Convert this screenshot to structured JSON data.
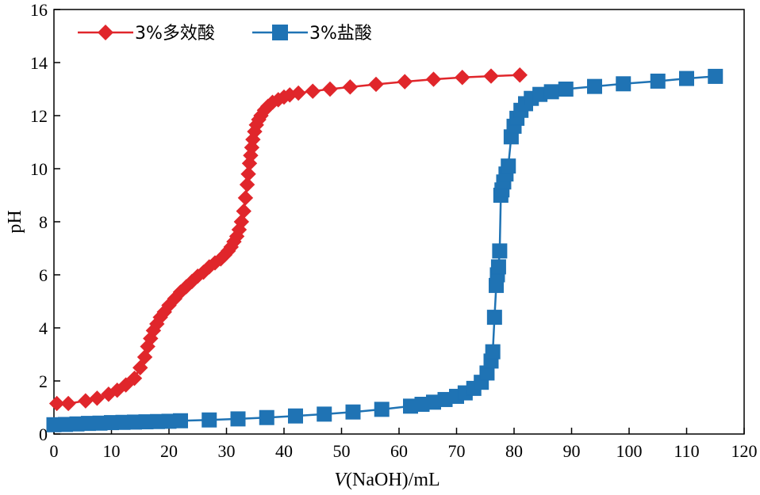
{
  "chart_data": {
    "type": "line",
    "title": "",
    "xlabel_italic": "V",
    "xlabel_rest": "(NaOH)/mL",
    "ylabel": "pH",
    "xlim": [
      0,
      120
    ],
    "ylim": [
      0,
      16
    ],
    "xticks": [
      0,
      10,
      20,
      30,
      40,
      50,
      60,
      70,
      80,
      90,
      100,
      110,
      120
    ],
    "yticks": [
      0,
      2,
      4,
      6,
      8,
      10,
      12,
      14,
      16
    ],
    "grid": false,
    "legend_position": "top-left",
    "series": [
      {
        "name": "3%多效酸",
        "color": "#e0262b",
        "marker": "diamond",
        "x": [
          0.5,
          2.5,
          5.5,
          7.5,
          9.5,
          11,
          12.5,
          14,
          15,
          15.8,
          16.3,
          16.8,
          17.3,
          17.9,
          18.5,
          19.2,
          20,
          21,
          22,
          23,
          24,
          25,
          26,
          27,
          28,
          29,
          29.7,
          30.3,
          30.8,
          31.3,
          31.8,
          32.2,
          32.6,
          33,
          33.3,
          33.6,
          33.8,
          34,
          34.2,
          34.4,
          34.6,
          34.9,
          35.2,
          35.6,
          36,
          36.6,
          37.2,
          38,
          39,
          40,
          41,
          42.5,
          45,
          48,
          51.5,
          56,
          61,
          66,
          71,
          76,
          81
        ],
        "y": [
          1.15,
          1.15,
          1.25,
          1.35,
          1.5,
          1.65,
          1.85,
          2.1,
          2.5,
          2.9,
          3.3,
          3.6,
          3.9,
          4.15,
          4.4,
          4.6,
          4.85,
          5.1,
          5.35,
          5.55,
          5.75,
          5.95,
          6.1,
          6.3,
          6.45,
          6.6,
          6.75,
          6.9,
          7.05,
          7.25,
          7.45,
          7.7,
          8.0,
          8.4,
          8.9,
          9.4,
          9.8,
          10.2,
          10.5,
          10.8,
          11.1,
          11.4,
          11.65,
          11.85,
          12.0,
          12.2,
          12.35,
          12.5,
          12.6,
          12.7,
          12.78,
          12.85,
          12.92,
          13.0,
          13.08,
          13.18,
          13.28,
          13.37,
          13.44,
          13.49,
          13.53
        ]
      },
      {
        "name": "3%盐酸",
        "color": "#1f73b4",
        "marker": "square",
        "x": [
          0,
          2,
          4,
          6,
          8,
          10,
          12,
          14,
          16,
          18,
          20,
          22,
          27,
          32,
          37,
          42,
          47,
          52,
          57,
          62,
          64,
          66,
          68,
          70,
          71.5,
          73,
          74.3,
          75.3,
          76,
          76.3,
          76.6,
          76.9,
          77.1,
          77.3,
          77.5,
          77.7,
          77.9,
          78.2,
          78.6,
          79,
          79.5,
          80,
          80.5,
          81.2,
          82,
          83,
          84.5,
          86.5,
          89,
          94,
          99,
          105,
          110,
          115
        ],
        "y": [
          0.35,
          0.36,
          0.38,
          0.4,
          0.41,
          0.43,
          0.44,
          0.45,
          0.46,
          0.47,
          0.48,
          0.5,
          0.53,
          0.57,
          0.62,
          0.68,
          0.75,
          0.83,
          0.93,
          1.05,
          1.12,
          1.2,
          1.3,
          1.42,
          1.55,
          1.72,
          1.95,
          2.3,
          2.75,
          3.1,
          4.4,
          5.6,
          6.0,
          6.3,
          6.9,
          9.0,
          9.2,
          9.5,
          9.8,
          10.1,
          11.2,
          11.6,
          11.9,
          12.2,
          12.45,
          12.65,
          12.8,
          12.9,
          13.0,
          13.1,
          13.2,
          13.3,
          13.4,
          13.48
        ]
      }
    ]
  }
}
